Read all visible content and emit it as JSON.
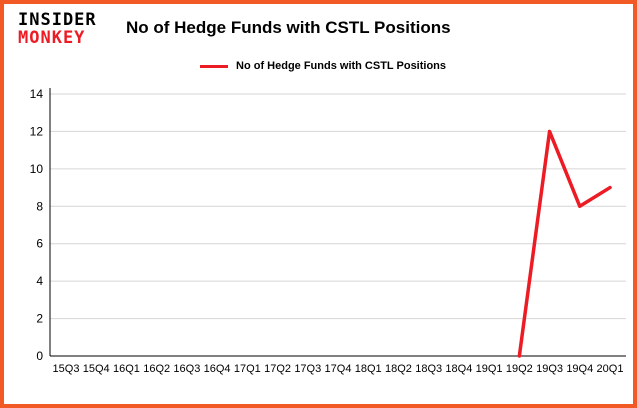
{
  "brand": {
    "logo_line1": "INSIDER",
    "logo_line2": "MONKEY",
    "logo_color1": "#000000",
    "logo_color2": "#ed1c24"
  },
  "header": {
    "title": "No of Hedge Funds with CSTL Positions"
  },
  "legend": {
    "label": "No of Hedge Funds with CSTL Positions",
    "line_color": "#ed1c24"
  },
  "colors": {
    "border": "#f15a24",
    "grid": "#d6d6d6",
    "axis": "#000000",
    "line": "#ed1c24"
  },
  "chart_data": {
    "type": "line",
    "title": "No of Hedge Funds with CSTL Positions",
    "categories": [
      "15Q3",
      "15Q4",
      "16Q1",
      "16Q2",
      "16Q3",
      "16Q4",
      "17Q1",
      "17Q2",
      "17Q3",
      "17Q4",
      "18Q1",
      "18Q2",
      "18Q3",
      "18Q4",
      "19Q1",
      "19Q2",
      "19Q3",
      "19Q4",
      "20Q1"
    ],
    "series": [
      {
        "name": "No of Hedge Funds with CSTL Positions",
        "values": [
          null,
          null,
          null,
          null,
          null,
          null,
          null,
          null,
          null,
          null,
          null,
          null,
          null,
          null,
          null,
          0,
          12,
          8,
          9
        ]
      }
    ],
    "xlabel": "",
    "ylabel": "",
    "ylim": [
      0,
      14
    ],
    "yticks": [
      0,
      2,
      4,
      6,
      8,
      10,
      12,
      14
    ],
    "grid": true,
    "legend_position": "top-left",
    "line_color": "#ed1c24"
  }
}
